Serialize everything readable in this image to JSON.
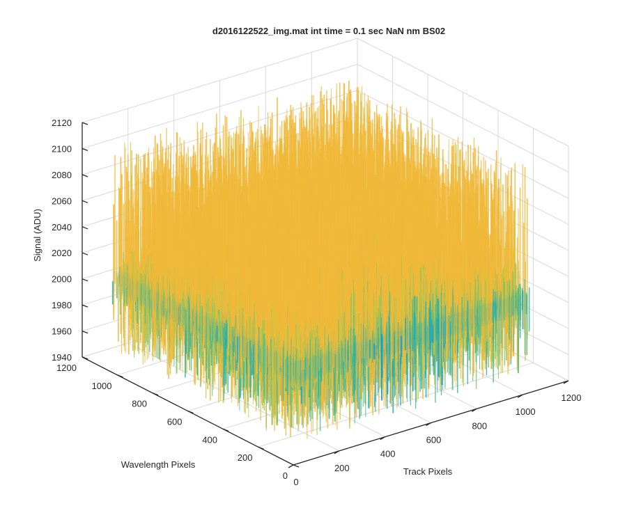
{
  "chart_data": {
    "type": "surface3d",
    "title": "d2016122522_img.mat int time = 0.1 sec  NaN nm BS02",
    "xlabel": "Track Pixels",
    "ylabel": "Wavelength Pixels",
    "zlabel": "Signal (ADU)",
    "xlim": [
      0,
      1200
    ],
    "ylim": [
      0,
      1200
    ],
    "zlim": [
      1940,
      2120
    ],
    "x_ticks": [
      0,
      200,
      400,
      600,
      800,
      1000,
      1200
    ],
    "y_ticks": [
      0,
      200,
      400,
      600,
      800,
      1000,
      1200
    ],
    "z_ticks": [
      1940,
      1960,
      1980,
      2000,
      2020,
      2040,
      2060,
      2080,
      2100,
      2120
    ],
    "x_tick_labels": [
      "0",
      "200",
      "400",
      "600",
      "800",
      "1000",
      "1200"
    ],
    "y_tick_labels": [
      "0",
      "200",
      "400",
      "600",
      "800",
      "1000",
      "1200"
    ],
    "z_tick_labels": [
      "1940",
      "1960",
      "1980",
      "2000",
      "2020",
      "2040",
      "2060",
      "2080",
      "2100",
      "2120"
    ],
    "data_extent": {
      "x": [
        0,
        1024
      ],
      "y": [
        0,
        1024
      ]
    },
    "baseline_signal": 2010,
    "noise_band": [
      1960,
      2110
    ],
    "colormap": [
      "#0f8fd6",
      "#1aa6c8",
      "#27b0a8",
      "#4cba8a",
      "#8fc45f",
      "#cfc43e",
      "#f0b93a"
    ],
    "grid": true
  }
}
